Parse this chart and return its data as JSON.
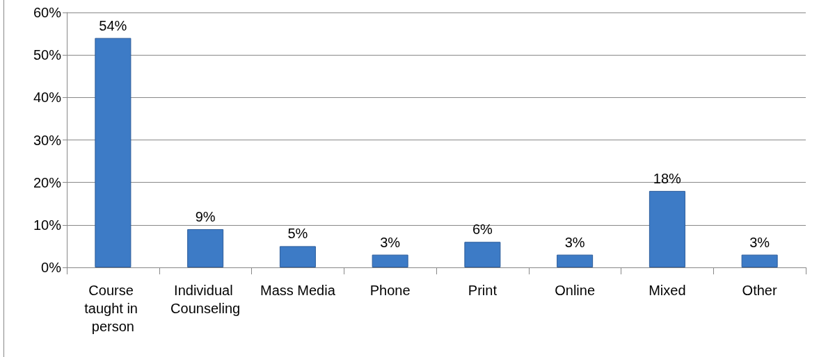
{
  "chart_data": {
    "type": "bar",
    "categories": [
      "Course taught in person",
      "Individual Counseling",
      "Mass Media",
      "Phone",
      "Print",
      "Online",
      "Mixed",
      "Other"
    ],
    "values": [
      54,
      9,
      5,
      3,
      6,
      3,
      18,
      3
    ],
    "value_labels": [
      "54%",
      "9%",
      "5%",
      "3%",
      "6%",
      "3%",
      "18%",
      "3%"
    ],
    "color": "#3d7bc6",
    "ylim": [
      0,
      60
    ],
    "yticks": [
      {
        "value": 0,
        "label": "0%"
      },
      {
        "value": 10,
        "label": "10%"
      },
      {
        "value": 20,
        "label": "20%"
      },
      {
        "value": 30,
        "label": "30%"
      },
      {
        "value": 40,
        "label": "40%"
      },
      {
        "value": 50,
        "label": "50%"
      },
      {
        "value": 60,
        "label": "60%"
      }
    ],
    "grid": "y"
  }
}
